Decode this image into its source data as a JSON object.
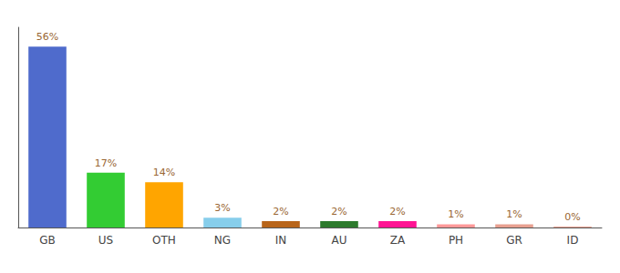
{
  "chart_data": {
    "type": "bar",
    "categories": [
      "GB",
      "US",
      "OTH",
      "NG",
      "IN",
      "AU",
      "ZA",
      "PH",
      "GR",
      "ID"
    ],
    "values": [
      56,
      17,
      14,
      3,
      2,
      2,
      2,
      1,
      1,
      0.3
    ],
    "value_labels": [
      "56%",
      "17%",
      "14%",
      "3%",
      "2%",
      "2%",
      "2%",
      "1%",
      "1%",
      "0%"
    ],
    "colors": [
      "#4F6BCC",
      "#33CC33",
      "#FFA500",
      "#87CEEB",
      "#B8651A",
      "#2D7A2D",
      "#FF1493",
      "#FF9999",
      "#E8A090",
      "#E8A090"
    ],
    "ylim": [
      0,
      62
    ],
    "data_labels": true,
    "tick_labels": "x",
    "grid": false
  }
}
